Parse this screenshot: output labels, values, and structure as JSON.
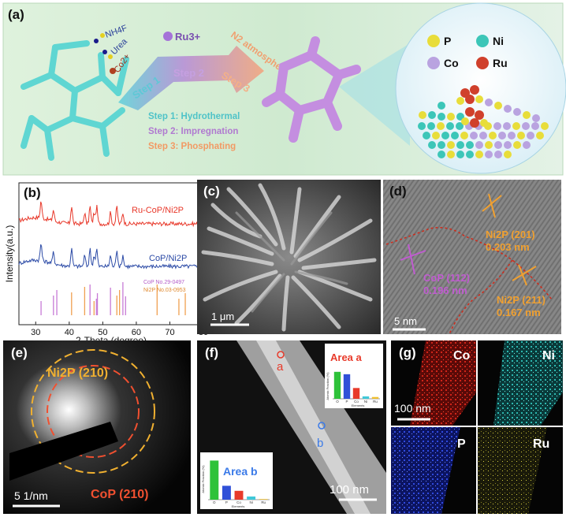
{
  "panel_a": {
    "label": "(a)",
    "reagents": [
      "NH4F",
      "Urea",
      "Co2+"
    ],
    "ru_label": "Ru3+",
    "n2_label": "N2 atmosphere",
    "step_arrows": [
      "Step 1",
      "Step 2",
      "Step 3"
    ],
    "steps": [
      {
        "text": "Step 1: Hydrothermal",
        "color": "#4fc3c8"
      },
      {
        "text": "Step 2: Impregnation",
        "color": "#b07ad0"
      },
      {
        "text": "Step 3: Phosphating",
        "color": "#f29a64"
      }
    ],
    "legend": [
      {
        "name": "P",
        "color": "#e8dd3a"
      },
      {
        "name": "Ni",
        "color": "#3cc6b8"
      },
      {
        "name": "Co",
        "color": "#b9a3e0"
      },
      {
        "name": "Ru",
        "color": "#d0402c"
      }
    ]
  },
  "panel_b": {
    "label": "(b)",
    "ylabel": "Intensity(a.u.)",
    "xlabel": "2-Theta (degree)",
    "series_labels": [
      "Ru-CoP/Ni2P",
      "CoP/Ni2P"
    ],
    "ref_labels": [
      "CoP   No.29-0497",
      "Ni2P  No.03-0953"
    ]
  },
  "chart_data": {
    "type": "line",
    "xlabel": "2-Theta (degree)",
    "ylabel": "Intensity(a.u.)",
    "xlim": [
      25,
      80
    ],
    "xticks": [
      30,
      40,
      50,
      60,
      70,
      80
    ],
    "series": [
      {
        "name": "Ru-CoP/Ni2P",
        "color": "#e8382a"
      },
      {
        "name": "CoP/Ni2P",
        "color": "#2b4aa6"
      }
    ],
    "reference_lines": [
      {
        "name": "CoP No.29-0497",
        "color": "#c77ad6",
        "positions": [
          31.6,
          35.3,
          36.3,
          46.2,
          48.1,
          48.4,
          52.3,
          56.0,
          56.8
        ]
      },
      {
        "name": "Ni2P No.03-0953",
        "color": "#f0a050",
        "positions": [
          40.7,
          44.6,
          47.4,
          54.2,
          55.0,
          66.2,
          72.7,
          74.6
        ]
      }
    ]
  },
  "panel_c": {
    "label": "(c)",
    "scale_bar": "1 μm"
  },
  "panel_d": {
    "label": "(d)",
    "scale_bar": "5 nm",
    "annotations": [
      {
        "phase": "Ni2P (201)",
        "d": "0.203 nm",
        "color": "#f0a030"
      },
      {
        "phase": "CoP (112)",
        "d": "0.196 nm",
        "color": "#c05cd0"
      },
      {
        "phase": "Ni2P (211)",
        "d": "0.167 nm",
        "color": "#f0a030"
      }
    ]
  },
  "panel_e": {
    "label": "(e)",
    "scale_bar": "5  1/nm",
    "rings": [
      {
        "text": "Ni2P (210)",
        "color": "#f0b030"
      },
      {
        "text": "CoP (210)",
        "color": "#f05030"
      }
    ]
  },
  "panel_f": {
    "label": "(f)",
    "scale_bar": "100 nm",
    "points": [
      "a",
      "b"
    ],
    "area_a": {
      "title": "Area a",
      "ylabel": "Atomic Fraction (%)",
      "xlabel": "Elements",
      "elements": [
        "O",
        "P",
        "Co",
        "Ni",
        "Ru"
      ],
      "values": [
        45,
        41,
        18,
        4,
        3
      ],
      "colors": [
        "#2ec23a",
        "#3050d8",
        "#e83a2a",
        "#40c8d8",
        "#f0c030"
      ]
    },
    "area_b": {
      "title": "Area b",
      "ylabel": "Atomic Fraction (%)",
      "xlabel": "Elements",
      "elements": [
        "O",
        "P",
        "Co",
        "Ni",
        "Ru"
      ],
      "values": [
        62,
        22,
        14,
        5,
        1
      ],
      "colors": [
        "#2ec23a",
        "#3050d8",
        "#e83a2a",
        "#40c8d8",
        "#f0c030"
      ]
    }
  },
  "panel_g": {
    "label": "(g)",
    "scale_bar": "100 nm",
    "maps": [
      {
        "element": "Co",
        "color": "#e02a1a"
      },
      {
        "element": "Ni",
        "color": "#35c9c2"
      },
      {
        "element": "P",
        "color": "#2a45e0"
      },
      {
        "element": "Ru",
        "color": "#e6e03a"
      }
    ]
  }
}
